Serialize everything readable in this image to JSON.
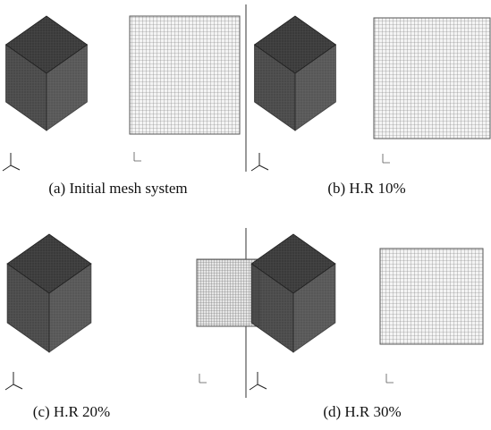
{
  "panels": [
    {
      "caption": "(a) Initial mesh system"
    },
    {
      "caption": "(b) H.R 10%"
    },
    {
      "caption": "(c) H.R 20%"
    },
    {
      "caption": "(d) H.R 30%"
    }
  ]
}
